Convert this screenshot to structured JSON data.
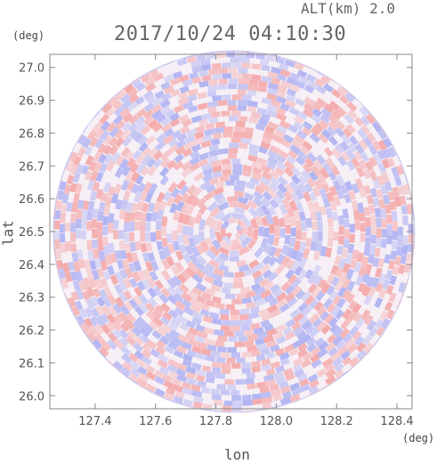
{
  "header": {
    "altitude": "ALT(km) 2.0",
    "datetime": "2017/10/24 04:10:30"
  },
  "chart_data": {
    "type": "heatmap",
    "title": "2017/10/24 04:10:30",
    "subtitle": "ALT(km) 2.0",
    "xlabel": "lon",
    "ylabel": "lat",
    "xunit": "(deg)",
    "yunit": "(deg)",
    "xlim": [
      127.25,
      128.45
    ],
    "ylim": [
      25.96,
      27.04
    ],
    "xticks": [
      "127.4",
      "127.6",
      "127.8",
      "128.0",
      "128.2",
      "128.4"
    ],
    "yticks": [
      "26.0",
      "26.1",
      "26.2",
      "26.3",
      "26.4",
      "26.5",
      "26.6",
      "26.7",
      "26.8",
      "26.9",
      "27.0"
    ],
    "center": {
      "lon": 127.86,
      "lat": 26.5
    },
    "range_radius_lon": 0.6,
    "grid": false,
    "legend": "none",
    "colors": {
      "positive": "#f4a3a3",
      "negative": "#a9adf2",
      "neutral": "#ffffff",
      "axis": "#888888"
    }
  }
}
